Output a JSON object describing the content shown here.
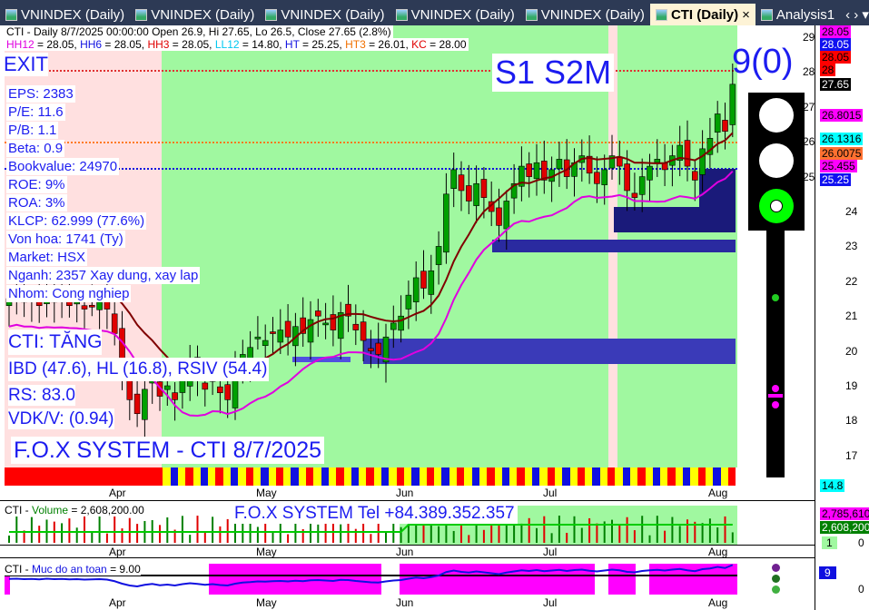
{
  "tabs": [
    {
      "label": "VNINDEX (Daily)"
    },
    {
      "label": "VNINDEX (Daily)"
    },
    {
      "label": "VNINDEX (Daily)"
    },
    {
      "label": "VNINDEX (Daily)"
    },
    {
      "label": "VNINDEX (Daily)"
    },
    {
      "label": "CTI (Daily)",
      "active": true
    },
    {
      "label": "Analysis1"
    }
  ],
  "header": {
    "line1": "CTI - Daily 8/7/2025 00:00:00 Open 26.9, Hi 27.65, Lo 26.5, Close 27.65 (2.8%)",
    "indicators": [
      {
        "k": "HH12",
        "v": " = 28.05, ",
        "c": "#e000e0"
      },
      {
        "k": "HH6",
        "v": " = 28.05, ",
        "c": "#1010e0"
      },
      {
        "k": "HH3",
        "v": " = 28.05, ",
        "c": "#e00000"
      },
      {
        "k": "LL12",
        "v": " = 14.80, ",
        "c": "#00c8f0"
      },
      {
        "k": "HT",
        "v": "  = 25.25, ",
        "c": "#1010e0"
      },
      {
        "k": "HT3",
        "v": "  = 26.01, ",
        "c": "#f07000"
      },
      {
        "k": "KC",
        "v": " = 28.00",
        "c": "#e00000"
      }
    ]
  },
  "labels": {
    "exit": "EXIT",
    "signals": "S1  S2M",
    "score": "9(0)",
    "status": "CTI: TĂNG",
    "ibd": "IBD (47.6), HL (16.8), RSIV (54.4)",
    "rs": "RS: 83.0",
    "vdk": "VDK/V:  (0.94)",
    "brand": "F.O.X SYSTEM - CTI 8/7/2025",
    "phone": "F.O.X SYSTEM Tel +84.389.352.357"
  },
  "fundamentals": [
    "EPS: 2383",
    "P/E: 11.6",
    "P/B: 1.1",
    "Beta: 0.9",
    "Bookvalue: 24970",
    "ROE: 9%",
    "ROA: 3%",
    "KLCP: 62.999 (77.6%)",
    "Von hoa: 1741 (Ty)",
    "Market: HSX",
    "Nganh: 2357 Xay dung, xay lap",
    "Nhom: Cong nghiep"
  ],
  "price_axis": {
    "ticks": [
      "29",
      "28",
      "27",
      "26",
      "25",
      "24",
      "23",
      "22",
      "21",
      "20",
      "19",
      "18",
      "17"
    ],
    "badges": [
      {
        "v": "28.05",
        "bg": "#ff00ff",
        "fg": "#000"
      },
      {
        "v": "28.05",
        "bg": "#1010f0",
        "fg": "#fff"
      },
      {
        "v": "28.05",
        "bg": "#ff0000",
        "fg": "#000"
      },
      {
        "v": "28",
        "bg": "#ff0000",
        "fg": "#000"
      },
      {
        "v": "27.65",
        "bg": "#000",
        "fg": "#fff"
      },
      {
        "v": "26.8015",
        "bg": "#ff00ff",
        "fg": "#000"
      },
      {
        "v": "26.1316",
        "bg": "#00ffff",
        "fg": "#000"
      },
      {
        "v": "26.0075",
        "bg": "#ff7030",
        "fg": "#000"
      },
      {
        "v": "25.455",
        "bg": "#ff00ff",
        "fg": "#000"
      },
      {
        "v": "25.25",
        "bg": "#1010f0",
        "fg": "#fff"
      },
      {
        "v": "14.8",
        "bg": "#00ffff",
        "fg": "#000"
      }
    ]
  },
  "months": [
    "Apr",
    "May",
    "Jun",
    "Jul",
    "Aug"
  ],
  "volume": {
    "title_prefix": "CTI - ",
    "title_name": "Volume",
    "title_value": " = 2,608,200.00",
    "badge1": "2,785,610",
    "badge2": "2,608,200",
    "badge3": "1",
    "zero": "0"
  },
  "safety": {
    "title_prefix": "CTI - ",
    "title_name": "Muc do an toan",
    "title_value": " = 9.00",
    "badge": "9",
    "zero": "0"
  },
  "colors": {
    "up": "#00a000",
    "down": "#e00000",
    "bg_green": "#a0f8a0",
    "bg_pink": "#ffe0e0",
    "accent": "#1c1cf0"
  },
  "chart_data": {
    "type": "candlestick",
    "symbol": "CTI",
    "closes": [
      21.5,
      21.6,
      21.4,
      21.5,
      21.3,
      21.6,
      21.4,
      21.5,
      21.3,
      21.4,
      21.2,
      21.3,
      21.4,
      21.2,
      20.5,
      19.4,
      18.6,
      18.2,
      18.9,
      19.3,
      18.7,
      19.0,
      18.6,
      19.2,
      19.6,
      19.3,
      18.9,
      19.2,
      18.8,
      18.6,
      19.4,
      19.9,
      20.1,
      20.4,
      20.3,
      20.5,
      20.6,
      20.4,
      20.7,
      20.5,
      20.9,
      21.0,
      20.8,
      20.6,
      21.1,
      21.0,
      20.6,
      20.3,
      20.0,
      19.9,
      20.4,
      20.8,
      21.0,
      21.6,
      22.1,
      21.8,
      22.3,
      23.0,
      24.5,
      25.2,
      24.6,
      24.3,
      24.8,
      24.4,
      24.0,
      23.6,
      24.3,
      24.8,
      25.3,
      25.0,
      25.4,
      24.9,
      25.2,
      25.5,
      25.0,
      25.4,
      25.6,
      25.1,
      24.8,
      25.2,
      25.6,
      25.3,
      24.6,
      24.4,
      25.0,
      25.3,
      25.5,
      25.2,
      25.6,
      25.9,
      25.3,
      24.9,
      25.8,
      26.1,
      26.8,
      26.3,
      27.65
    ],
    "ylim": [
      16.5,
      29.3
    ]
  }
}
